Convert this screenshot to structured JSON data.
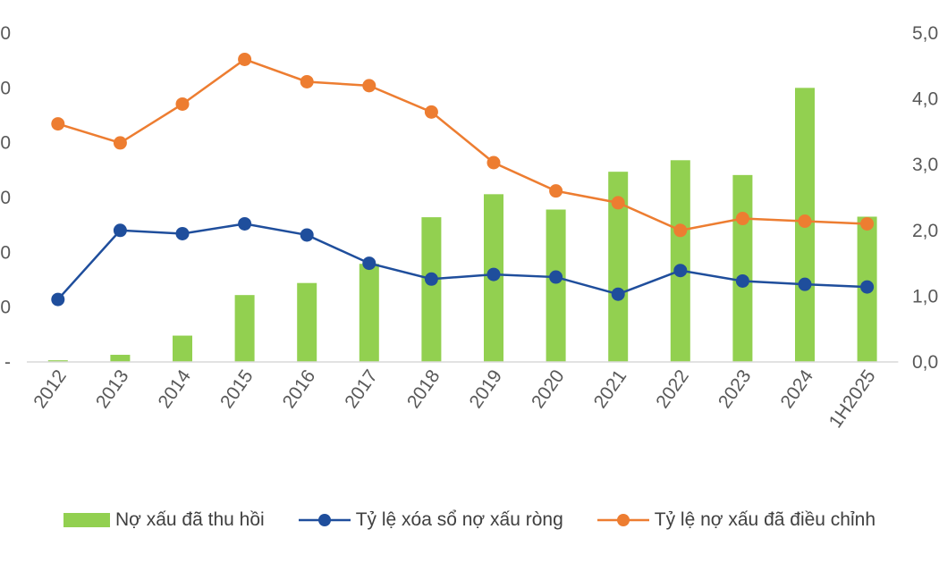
{
  "chart_data": {
    "type": "bar+line",
    "categories": [
      "2012",
      "2013",
      "2014",
      "2015",
      "2016",
      "2017",
      "2018",
      "2019",
      "2020",
      "2021",
      "2022",
      "2023",
      "2024",
      "1H2025"
    ],
    "series": [
      {
        "name": "Nợ xấu đã thu hồi",
        "kind": "bar",
        "axis": "left",
        "color": "#92D050",
        "values": [
          0.3,
          1.3,
          4.8,
          12.2,
          14.4,
          17.9,
          26.4,
          30.6,
          27.8,
          34.7,
          36.8,
          34.1,
          50.0,
          26.5
        ]
      },
      {
        "name": "Tỷ lệ xóa sổ nợ xấu ròng",
        "kind": "line",
        "axis": "right",
        "color": "#1F4E9C",
        "values": [
          0.95,
          2.0,
          1.95,
          2.1,
          1.93,
          1.5,
          1.26,
          1.33,
          1.29,
          1.03,
          1.39,
          1.23,
          1.18,
          1.14
        ]
      },
      {
        "name": "Tỷ lệ nợ xấu đã điều chỉnh",
        "kind": "line",
        "axis": "right",
        "color": "#ED7D31",
        "values": [
          3.62,
          3.33,
          3.92,
          4.6,
          4.26,
          4.2,
          3.8,
          3.03,
          2.6,
          2.42,
          2.0,
          2.18,
          2.14,
          2.1
        ]
      }
    ],
    "left_axis": {
      "ylim": [
        0,
        60
      ],
      "ticks": [
        "-",
        "0",
        "0",
        "0",
        "0",
        "0",
        "0"
      ]
    },
    "right_axis": {
      "ylim": [
        0,
        5
      ],
      "ticks": [
        "0,0",
        "1,0",
        "2,0",
        "3,0",
        "4,0",
        "5,0"
      ]
    },
    "legend_position": "bottom",
    "grid": false
  }
}
